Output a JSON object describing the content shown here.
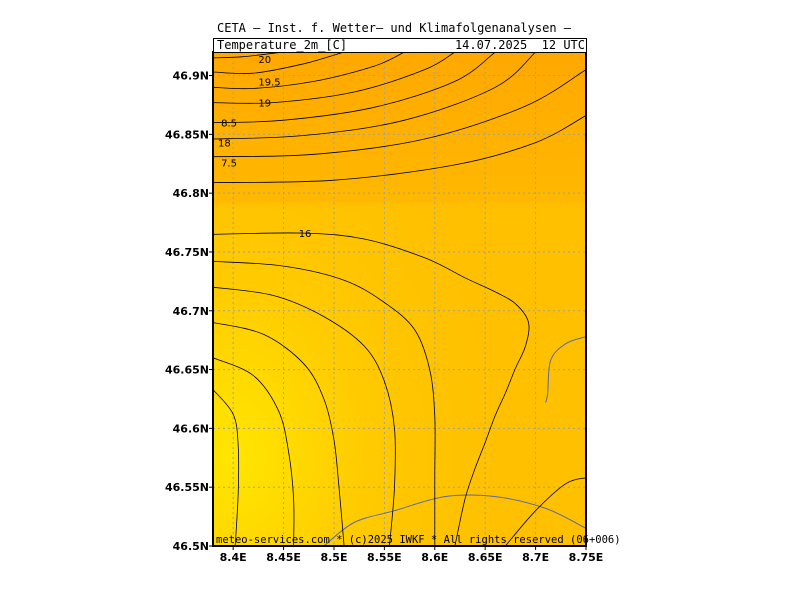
{
  "header": {
    "institution": "CETA — Inst. f. Wetter— und Klimafolgenanalysen —",
    "field": "Temperature_2m_[C]",
    "datetime": "14.07.2025  12 UTC"
  },
  "footer": {
    "credit": "meteo-services.com * (c)2025 IWKF * All rights reserved (06+006)"
  },
  "colors": {
    "warm_orange": "#FFB000",
    "orange": "#FFC000",
    "yellow_orange": "#FFCC00",
    "light_yellow": "#FFE000",
    "contour": "#000000",
    "coastline": "#5a6aa0",
    "grid": "#a0a0a0"
  },
  "chart_data": {
    "type": "heatmap",
    "xlim": [
      8.38,
      8.75
    ],
    "ylim": [
      46.5,
      46.92
    ],
    "x_ticks": [
      {
        "value": 8.4,
        "label": "8.4E"
      },
      {
        "value": 8.45,
        "label": "8.45E"
      },
      {
        "value": 8.5,
        "label": "8.5E"
      },
      {
        "value": 8.55,
        "label": "8.55E"
      },
      {
        "value": 8.6,
        "label": "8.6E"
      },
      {
        "value": 8.65,
        "label": "8.65E"
      },
      {
        "value": 8.7,
        "label": "8.7E"
      },
      {
        "value": 8.75,
        "label": "8.75E"
      }
    ],
    "y_ticks": [
      {
        "value": 46.5,
        "label": "46.5N"
      },
      {
        "value": 46.55,
        "label": "46.55N"
      },
      {
        "value": 46.6,
        "label": "46.6N"
      },
      {
        "value": 46.65,
        "label": "46.65N"
      },
      {
        "value": 46.7,
        "label": "46.7N"
      },
      {
        "value": 46.75,
        "label": "46.75N"
      },
      {
        "value": 46.8,
        "label": "46.8N"
      },
      {
        "value": 46.85,
        "label": "46.85N"
      },
      {
        "value": 46.9,
        "label": "46.9N"
      }
    ],
    "grid": true,
    "contour_labels": [
      {
        "text": "20",
        "lon": 8.425,
        "lat": 46.914
      },
      {
        "text": "19.5",
        "lon": 8.425,
        "lat": 46.895
      },
      {
        "text": "19",
        "lon": 8.425,
        "lat": 46.877
      },
      {
        "text": "8.5",
        "lon": 8.388,
        "lat": 46.86
      },
      {
        "text": "18",
        "lon": 8.385,
        "lat": 46.843
      },
      {
        "text": "7.5",
        "lon": 8.388,
        "lat": 46.826
      },
      {
        "text": "16",
        "lon": 8.465,
        "lat": 46.766
      }
    ],
    "contours": [
      {
        "points": [
          [
            8.38,
            46.915
          ],
          [
            8.41,
            46.916
          ],
          [
            8.45,
            46.92
          ]
        ]
      },
      {
        "points": [
          [
            8.38,
            46.903
          ],
          [
            8.42,
            46.902
          ],
          [
            8.47,
            46.91
          ],
          [
            8.51,
            46.92
          ]
        ]
      },
      {
        "points": [
          [
            8.38,
            46.89
          ],
          [
            8.42,
            46.889
          ],
          [
            8.48,
            46.895
          ],
          [
            8.54,
            46.908
          ],
          [
            8.57,
            46.92
          ]
        ]
      },
      {
        "points": [
          [
            8.38,
            46.877
          ],
          [
            8.44,
            46.877
          ],
          [
            8.52,
            46.886
          ],
          [
            8.59,
            46.905
          ],
          [
            8.62,
            46.92
          ]
        ]
      },
      {
        "points": [
          [
            8.38,
            46.86
          ],
          [
            8.45,
            46.862
          ],
          [
            8.54,
            46.873
          ],
          [
            8.62,
            46.895
          ],
          [
            8.66,
            46.92
          ]
        ]
      },
      {
        "points": [
          [
            8.38,
            46.846
          ],
          [
            8.47,
            46.849
          ],
          [
            8.57,
            46.862
          ],
          [
            8.66,
            46.89
          ],
          [
            8.7,
            46.92
          ]
        ]
      },
      {
        "points": [
          [
            8.38,
            46.831
          ],
          [
            8.48,
            46.833
          ],
          [
            8.59,
            46.846
          ],
          [
            8.69,
            46.874
          ],
          [
            8.75,
            46.905
          ]
        ]
      },
      {
        "points": [
          [
            8.38,
            46.809
          ],
          [
            8.5,
            46.811
          ],
          [
            8.62,
            46.824
          ],
          [
            8.7,
            46.843
          ],
          [
            8.75,
            46.866
          ]
        ]
      },
      {
        "points": [
          [
            8.38,
            46.765
          ],
          [
            8.47,
            46.766
          ],
          [
            8.53,
            46.761
          ],
          [
            8.59,
            46.745
          ],
          [
            8.63,
            46.728
          ],
          [
            8.66,
            46.716
          ],
          [
            8.68,
            46.706
          ],
          [
            8.693,
            46.69
          ],
          [
            8.69,
            46.67
          ],
          [
            8.68,
            46.651
          ],
          [
            8.67,
            46.63
          ],
          [
            8.66,
            46.611
          ],
          [
            8.65,
            46.588
          ],
          [
            8.64,
            46.566
          ],
          [
            8.63,
            46.54
          ],
          [
            8.62,
            46.5
          ]
        ]
      },
      {
        "points": [
          [
            8.38,
            46.742
          ],
          [
            8.45,
            46.738
          ],
          [
            8.51,
            46.726
          ],
          [
            8.55,
            46.707
          ],
          [
            8.58,
            46.684
          ],
          [
            8.595,
            46.65
          ],
          [
            8.6,
            46.61
          ],
          [
            8.6,
            46.56
          ],
          [
            8.6,
            46.5
          ]
        ]
      },
      {
        "points": [
          [
            8.38,
            46.72
          ],
          [
            8.44,
            46.713
          ],
          [
            8.49,
            46.695
          ],
          [
            8.53,
            46.67
          ],
          [
            8.55,
            46.64
          ],
          [
            8.56,
            46.6
          ],
          [
            8.56,
            46.55
          ],
          [
            8.555,
            46.5
          ]
        ]
      },
      {
        "points": [
          [
            8.38,
            46.69
          ],
          [
            8.43,
            46.68
          ],
          [
            8.47,
            46.655
          ],
          [
            8.49,
            46.625
          ],
          [
            8.5,
            46.59
          ],
          [
            8.505,
            46.55
          ],
          [
            8.51,
            46.5
          ]
        ]
      },
      {
        "points": [
          [
            8.38,
            46.66
          ],
          [
            8.42,
            46.645
          ],
          [
            8.445,
            46.615
          ],
          [
            8.455,
            46.58
          ],
          [
            8.46,
            46.54
          ],
          [
            8.46,
            46.5
          ]
        ]
      },
      {
        "points": [
          [
            8.38,
            46.633
          ],
          [
            8.4,
            46.612
          ],
          [
            8.405,
            46.585
          ],
          [
            8.405,
            46.545
          ],
          [
            8.402,
            46.5
          ]
        ]
      },
      {
        "points": [
          [
            8.67,
            46.5
          ],
          [
            8.7,
            46.53
          ],
          [
            8.73,
            46.553
          ],
          [
            8.75,
            46.558
          ]
        ]
      }
    ],
    "coastlines": [
      {
        "points": [
          [
            8.49,
            46.5
          ],
          [
            8.52,
            46.52
          ],
          [
            8.56,
            46.53
          ],
          [
            8.61,
            46.542
          ],
          [
            8.66,
            46.542
          ],
          [
            8.71,
            46.532
          ],
          [
            8.75,
            46.515
          ]
        ]
      },
      {
        "points": [
          [
            8.75,
            46.678
          ],
          [
            8.73,
            46.672
          ],
          [
            8.715,
            46.658
          ],
          [
            8.712,
            46.63
          ],
          [
            8.71,
            46.622
          ]
        ]
      }
    ]
  }
}
